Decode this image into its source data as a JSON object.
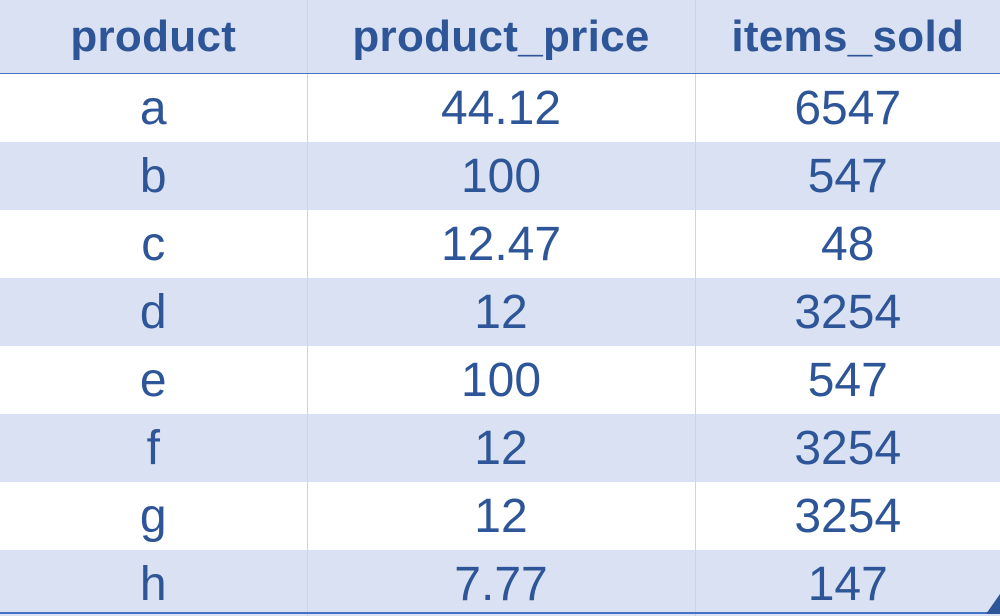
{
  "table": {
    "columns": [
      "product",
      "product_price",
      "items_sold"
    ],
    "rows": [
      [
        "a",
        "44.12",
        "6547"
      ],
      [
        "b",
        "100",
        "547"
      ],
      [
        "c",
        "12.47",
        "48"
      ],
      [
        "d",
        "12",
        "3254"
      ],
      [
        "e",
        "100",
        "547"
      ],
      [
        "f",
        "12",
        "3254"
      ],
      [
        "g",
        "12",
        "3254"
      ],
      [
        "h",
        "7.77",
        "147"
      ]
    ]
  },
  "colors": {
    "text": "#2d5597",
    "band": "#d9e1f2",
    "accent": "#4472c4"
  },
  "icons": {
    "corner": "resize-handle-icon"
  }
}
